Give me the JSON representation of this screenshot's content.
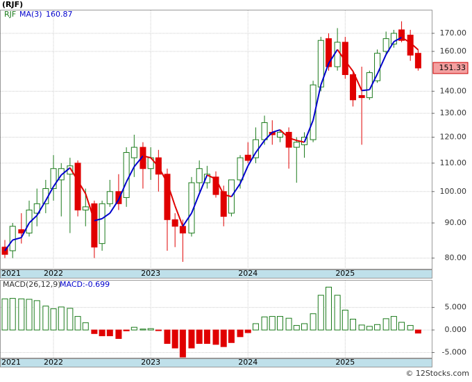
{
  "chart_data": [
    {
      "type": "candlestick",
      "title": "(RJF)",
      "name": "RJF",
      "name_color": "#1a7a1a",
      "x": [
        2021.5,
        2021.58,
        2021.67,
        2021.75,
        2021.83,
        2021.92,
        2022.0,
        2022.08,
        2022.17,
        2022.25,
        2022.33,
        2022.42,
        2022.5,
        2022.58,
        2022.67,
        2022.75,
        2022.83,
        2022.92,
        2023.0,
        2023.08,
        2023.17,
        2023.25,
        2023.33,
        2023.42,
        2023.5,
        2023.58,
        2023.67,
        2023.75,
        2023.83,
        2023.92,
        2024.0,
        2024.08,
        2024.17,
        2024.25,
        2024.33,
        2024.42,
        2024.5,
        2024.58,
        2024.67,
        2024.75,
        2024.83,
        2024.92,
        2025.0,
        2025.08,
        2025.17,
        2025.25,
        2025.33,
        2025.42,
        2025.5,
        2025.58,
        2025.67,
        2025.75
      ],
      "open": [
        83,
        82,
        88,
        87,
        93,
        96,
        101,
        104,
        106,
        110,
        94,
        96,
        84,
        96,
        100,
        98,
        112,
        116,
        108,
        112,
        106,
        91,
        89,
        87,
        103,
        103,
        105,
        100,
        93,
        104,
        113,
        112,
        119,
        122,
        120,
        122,
        116,
        117,
        119,
        142,
        167,
        152,
        165,
        148,
        138,
        137,
        145,
        160,
        164,
        172,
        169,
        159
      ],
      "high": [
        85,
        90,
        93,
        97,
        101,
        104,
        113,
        110,
        112,
        111,
        101,
        97,
        97,
        104,
        106,
        116,
        121,
        118,
        116,
        115,
        108,
        93,
        91,
        105,
        111,
        109,
        107,
        102,
        104,
        113,
        118,
        124,
        129,
        127,
        123,
        124,
        120,
        122,
        145,
        168,
        170,
        173,
        168,
        150,
        152,
        150,
        161,
        171,
        172,
        177,
        172,
        161
      ],
      "low": [
        80,
        80,
        84,
        86,
        89,
        93,
        97,
        92,
        87,
        92,
        89,
        80,
        82,
        95,
        94,
        95,
        105,
        101,
        104,
        100,
        82,
        83,
        79,
        86,
        100,
        101,
        98,
        89,
        92,
        101,
        110,
        110,
        117,
        117,
        118,
        108,
        103,
        112,
        118,
        140,
        150,
        150,
        146,
        133,
        117,
        136,
        144,
        158,
        162,
        165,
        155,
        150
      ],
      "close": [
        81,
        89,
        87,
        94,
        96,
        101,
        108,
        108,
        109,
        94,
        95,
        83,
        96,
        100,
        96,
        114,
        116,
        108,
        112,
        106,
        91,
        89,
        87,
        103,
        108,
        106,
        99,
        92,
        104,
        112,
        111,
        119,
        126,
        121,
        122,
        116,
        118,
        120,
        143,
        166,
        152,
        165,
        148,
        136,
        137,
        149,
        159,
        167,
        170,
        166,
        158,
        151.33
      ],
      "up_color": "#1a7a1a",
      "down_color": "#e00000",
      "ma": {
        "name": "MA(3)",
        "up_color": "#0000cc",
        "down_color": "#e00000",
        "values": [
          82,
          85,
          85.7,
          90,
          92.3,
          97,
          101.7,
          105.7,
          108.3,
          103.7,
          99.3,
          90.7,
          91.3,
          93,
          97.3,
          103.3,
          108.7,
          112.7,
          112,
          108.7,
          103,
          95.3,
          89,
          93,
          99.3,
          105.7,
          104.3,
          99,
          98.3,
          102.7,
          109,
          114,
          118.7,
          122,
          123,
          119.7,
          118.7,
          118,
          127,
          143,
          153.7,
          161,
          155,
          149.7,
          140.3,
          140.7,
          148.3,
          158.3,
          165.3,
          167.7,
          164.7,
          160.87
        ]
      },
      "log_scale": true,
      "ylim": [
        77,
        184
      ],
      "yticks": [
        {
          "value": 80,
          "label": "80.00"
        },
        {
          "value": 90,
          "label": "90.00"
        },
        {
          "value": 100,
          "label": "100.00"
        },
        {
          "value": 110,
          "label": "110.00"
        },
        {
          "value": 120,
          "label": "120.00"
        },
        {
          "value": 130,
          "label": "130.00"
        },
        {
          "value": 140,
          "label": "140.00"
        },
        {
          "value": 160,
          "label": "160.00"
        },
        {
          "value": 170,
          "label": "170.00"
        }
      ],
      "xlim": [
        2021.45,
        2025.89
      ],
      "xticks": [
        {
          "value": 2021.45,
          "label": "2021"
        },
        2022,
        2023,
        2024,
        2025
      ],
      "grid": true
    },
    {
      "type": "bar",
      "name": "MACD(26,12,9)",
      "value_text": "MACD:-0.699",
      "values": [
        6.9,
        7.0,
        6.9,
        6.8,
        6.5,
        5.3,
        4.7,
        5.1,
        4.8,
        3.0,
        1.6,
        -0.8,
        -1.3,
        -1.3,
        -1.9,
        -0.2,
        0.6,
        0.2,
        0.3,
        -0.1,
        -3.0,
        -4.0,
        -6.0,
        -4.0,
        -3.0,
        -3.0,
        -3.2,
        -3.7,
        -2.8,
        -1.5,
        -0.6,
        1.4,
        2.9,
        3.0,
        3.0,
        2.6,
        1.0,
        1.4,
        3.6,
        7.7,
        9.5,
        7.7,
        4.4,
        2.4,
        1.1,
        0.8,
        1.2,
        2.5,
        3.0,
        1.7,
        1.0,
        -0.699
      ],
      "up_color": "#1a7a1a",
      "down_color": "#e00000",
      "ylim": [
        -6.3,
        11.1
      ],
      "yticks": [
        {
          "value": 5,
          "label": "5.000"
        },
        {
          "value": 0,
          "label": "0.000"
        },
        {
          "value": -5,
          "label": "-5.000"
        }
      ],
      "grid": true
    }
  ],
  "footer": "© 12Stocks.com"
}
